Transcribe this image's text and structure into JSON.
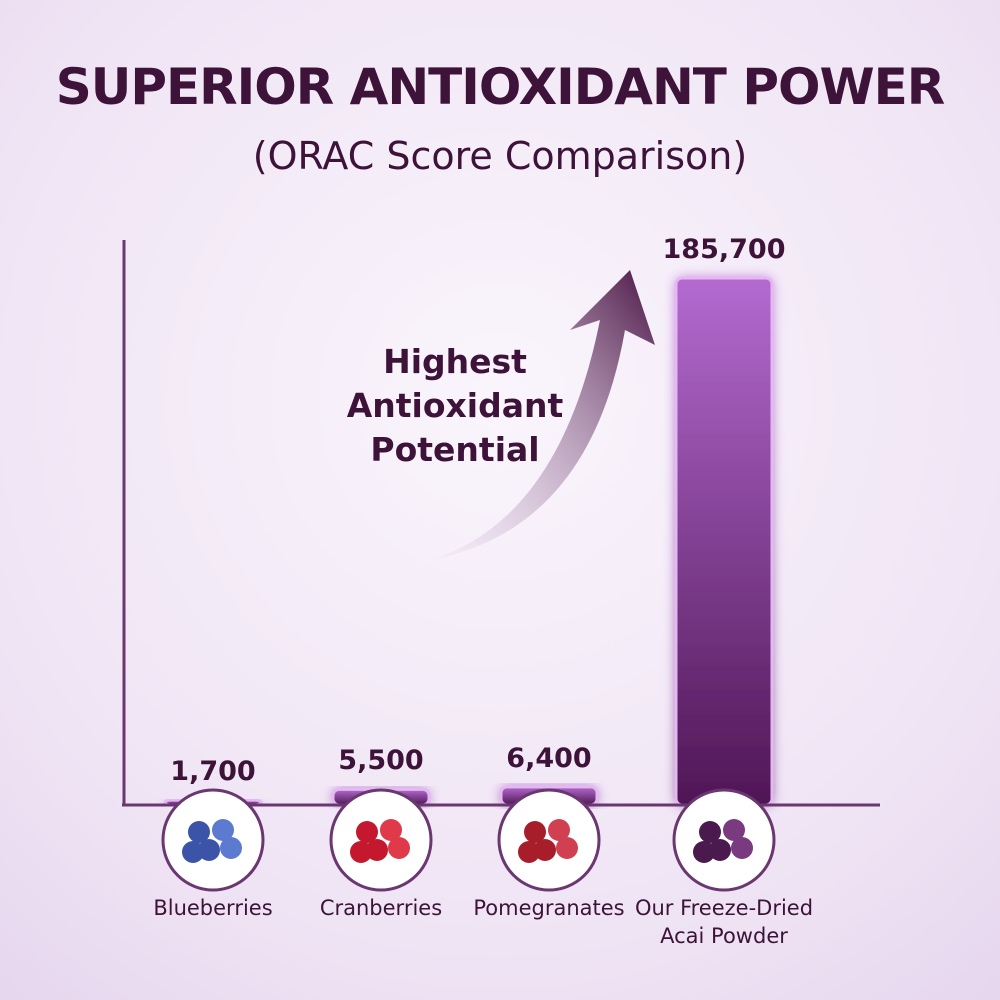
{
  "chart_data": {
    "type": "bar",
    "title": "SUPERIOR ANTIOXIDANT POWER",
    "subtitle": "(ORAC Score Comparison)",
    "annotation": "Highest Antioxidant Potential",
    "categories": [
      "Blueberries",
      "Cranberries",
      "Pomegranates",
      "Our Freeze-Dried Acai Powder"
    ],
    "values": [
      1700,
      5500,
      6400,
      185700
    ],
    "value_labels": [
      "1,700",
      "5,500",
      "6,400",
      "185,700"
    ],
    "color": "#7a3190"
  }
}
